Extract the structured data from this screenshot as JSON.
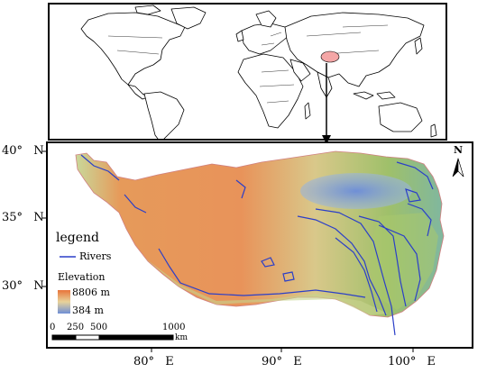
{
  "world_map": {
    "highlight_color": "#f4a6a6"
  },
  "main_map": {
    "y_axis": [
      {
        "deg": "40°",
        "hem": "N"
      },
      {
        "deg": "35°",
        "hem": "N"
      },
      {
        "deg": "30°",
        "hem": "N"
      }
    ],
    "x_axis": [
      {
        "deg": "80°",
        "hem": "E"
      },
      {
        "deg": "90°",
        "hem": "E"
      },
      {
        "deg": "100°",
        "hem": "E"
      }
    ],
    "north_label": "N",
    "legend": {
      "title": "legend",
      "river_label": "Rivers",
      "river_color": "#2b3fc8",
      "elevation_title": "Elevation",
      "elev_high": "8806 m",
      "elev_low": "384 m",
      "color_high": "#e8743a",
      "color_low": "#6f8fd6"
    },
    "scale_bar": {
      "labels": [
        "0",
        "250",
        "500",
        "1000"
      ],
      "unit": "km"
    }
  }
}
